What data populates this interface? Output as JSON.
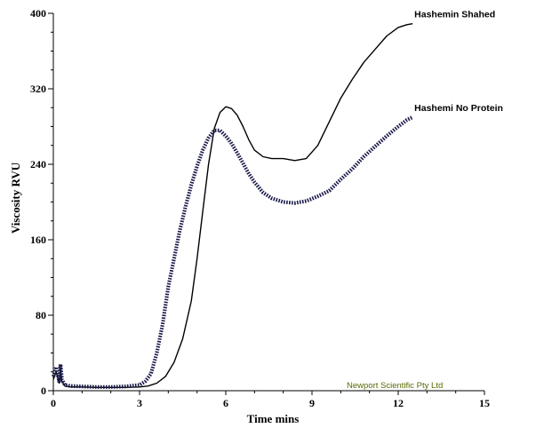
{
  "chart_data": {
    "type": "line",
    "title": "",
    "xlabel": "Time mins",
    "ylabel": "Viscosity RVU",
    "xlim": [
      0,
      15
    ],
    "ylim": [
      0,
      400
    ],
    "x_ticks": [
      0,
      3,
      6,
      9,
      12,
      15
    ],
    "y_ticks": [
      0,
      80,
      160,
      240,
      320,
      400
    ],
    "grid": false,
    "credit": "Newport Scientific Pty Ltd",
    "series": [
      {
        "name": "Hashemin Shahed",
        "style": "solid",
        "color": "#000000",
        "x": [
          0,
          0.1,
          0.2,
          0.25,
          0.3,
          0.4,
          0.6,
          1,
          1.5,
          2,
          2.5,
          3,
          3.3,
          3.6,
          3.9,
          4.2,
          4.5,
          4.8,
          5.0,
          5.2,
          5.4,
          5.6,
          5.8,
          6.0,
          6.2,
          6.4,
          6.6,
          6.8,
          7.0,
          7.3,
          7.6,
          8.0,
          8.4,
          8.8,
          9.2,
          9.6,
          10.0,
          10.4,
          10.8,
          11.2,
          11.6,
          12.0,
          12.3,
          12.5
        ],
        "y": [
          12,
          20,
          8,
          22,
          10,
          5,
          4,
          4,
          3.5,
          3.5,
          3.5,
          4,
          5,
          8,
          15,
          30,
          55,
          95,
          140,
          190,
          240,
          278,
          295,
          301,
          299,
          292,
          280,
          266,
          255,
          248,
          246,
          246,
          244,
          246,
          260,
          285,
          310,
          330,
          348,
          362,
          376,
          385,
          388,
          389
        ]
      },
      {
        "name": "Hashemi No Protein",
        "style": "dashed",
        "color": "#1a1a4a",
        "x": [
          0,
          0.1,
          0.2,
          0.25,
          0.3,
          0.4,
          0.6,
          1,
          1.5,
          2,
          2.5,
          3,
          3.2,
          3.4,
          3.6,
          3.8,
          4.0,
          4.2,
          4.4,
          4.6,
          4.8,
          5.0,
          5.2,
          5.4,
          5.6,
          5.8,
          6.0,
          6.2,
          6.4,
          6.6,
          6.8,
          7.0,
          7.3,
          7.6,
          8.0,
          8.4,
          8.8,
          9.2,
          9.6,
          10.0,
          10.4,
          10.8,
          11.2,
          11.6,
          12.0,
          12.3,
          12.5
        ],
        "y": [
          15,
          25,
          10,
          28,
          12,
          6,
          5,
          4.5,
          4,
          4,
          4.5,
          6,
          10,
          18,
          40,
          70,
          110,
          140,
          170,
          195,
          218,
          238,
          255,
          268,
          276,
          276,
          270,
          262,
          252,
          241,
          230,
          221,
          210,
          204,
          200,
          199,
          201,
          206,
          212,
          224,
          235,
          248,
          259,
          270,
          280,
          287,
          290
        ]
      }
    ]
  }
}
